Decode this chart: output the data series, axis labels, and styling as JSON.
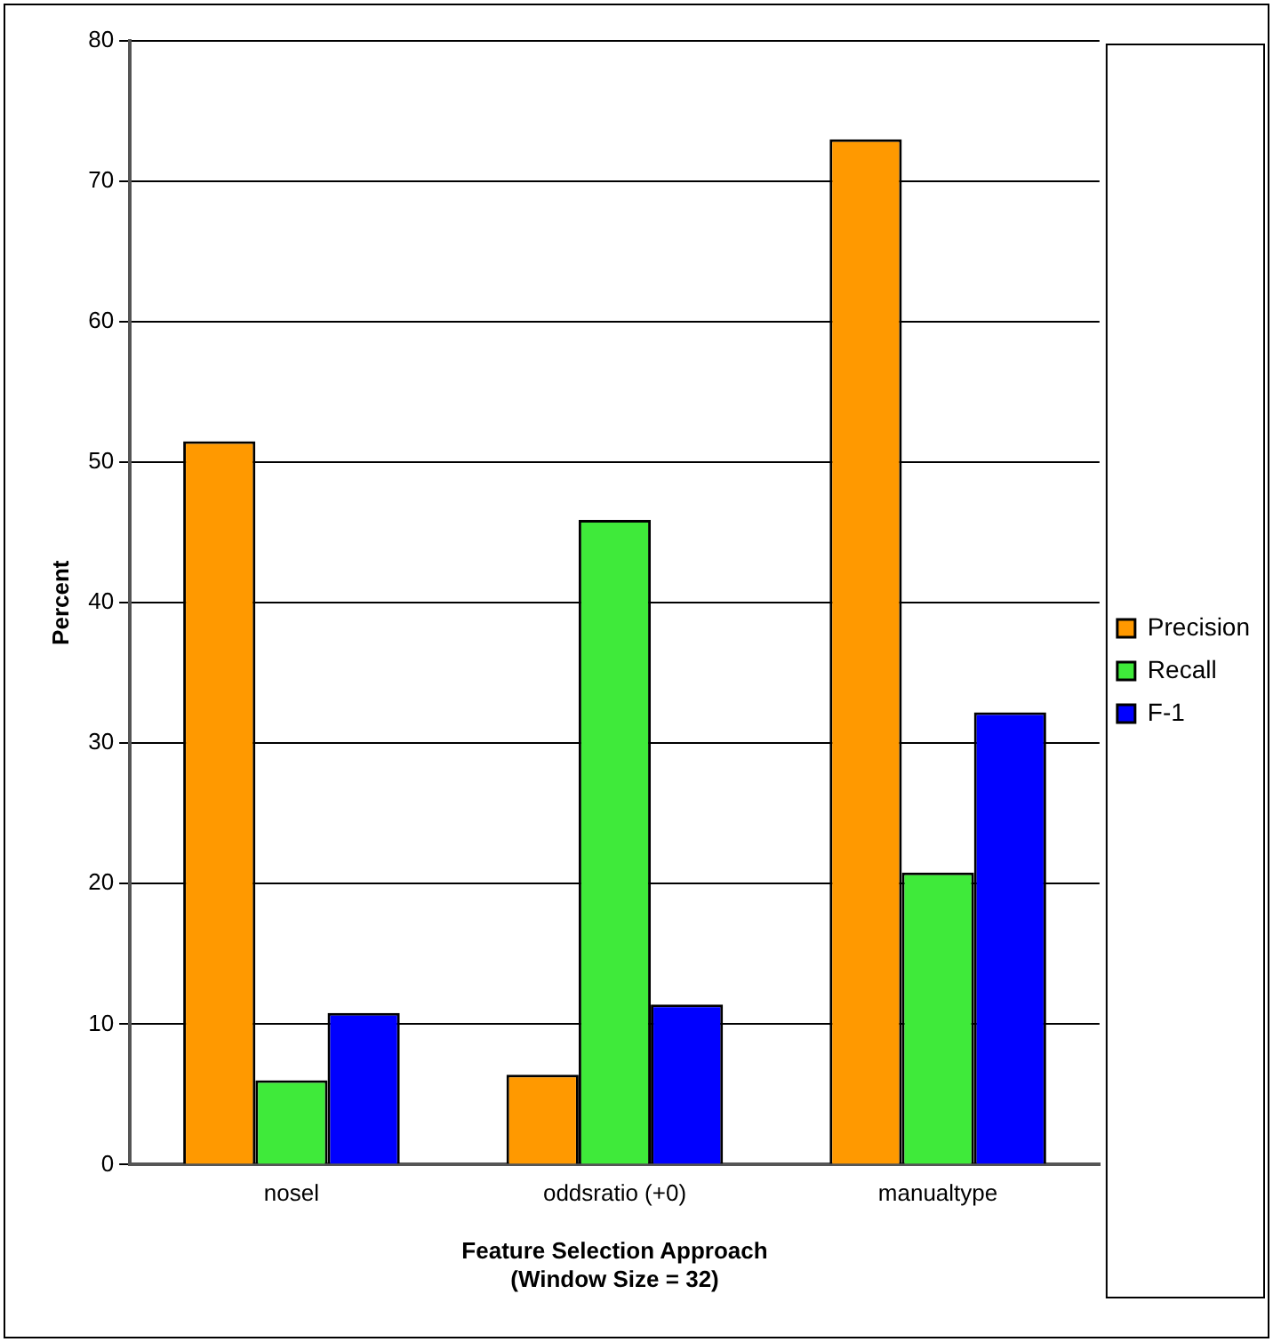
{
  "chart_data": {
    "type": "bar",
    "xlabel": "Feature Selection Approach\n(Window Size = 32)",
    "ylabel": "Percent",
    "categories": [
      "nosel",
      "oddsratio (+0)",
      "manualtype"
    ],
    "series": [
      {
        "name": "Precision",
        "color": "#ff9900",
        "values": [
          51.5,
          6.4,
          73.0
        ]
      },
      {
        "name": "Recall",
        "color": "#3fea3a",
        "values": [
          6.0,
          45.9,
          20.8
        ]
      },
      {
        "name": "F-1",
        "color": "#0000ff",
        "values": [
          10.8,
          11.4,
          32.2
        ]
      }
    ],
    "ylim": [
      0,
      80
    ],
    "yticks": [
      0,
      10,
      20,
      30,
      40,
      50,
      60,
      70,
      80
    ],
    "grid": "y",
    "legend": "right"
  }
}
